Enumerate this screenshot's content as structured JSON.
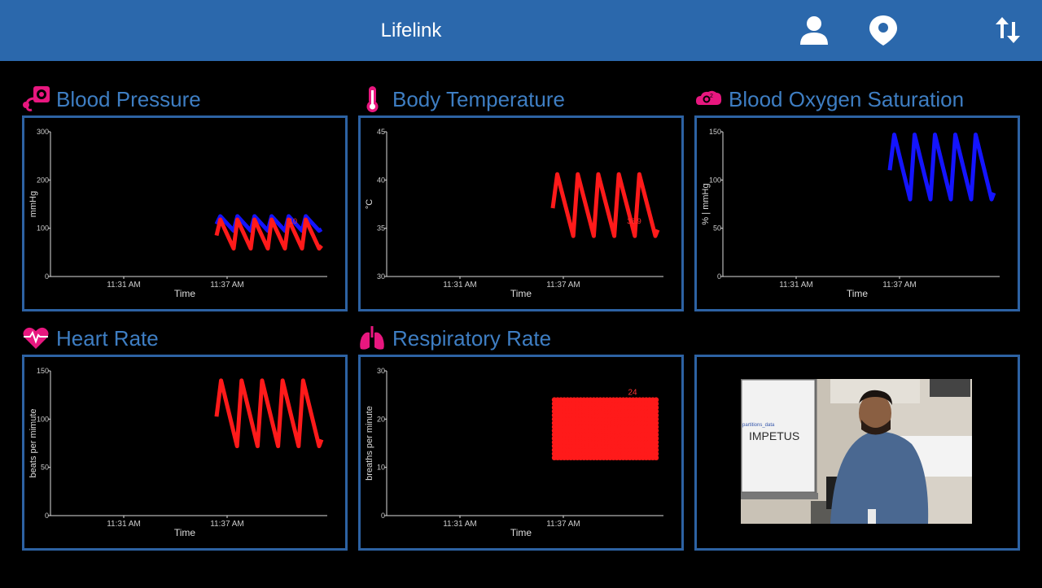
{
  "app": {
    "title": "Lifelink"
  },
  "header_icons": [
    "user-icon",
    "location-pin-icon",
    "sort-arrows-icon"
  ],
  "colors": {
    "header": "#2b68ac",
    "panel_border": "#2d62a3",
    "title_text": "#3e7ec3",
    "icon_pink": "#e8177f",
    "series_red": "#ff1a1a",
    "series_blue": "#1414ff"
  },
  "panels": [
    {
      "id": "bp",
      "title": "Blood Pressure",
      "icon": "blood-pressure-icon",
      "chart_data": {
        "type": "line",
        "ylabel": "mmHg",
        "xlabel": "Time",
        "yticks": [
          "0",
          "100",
          "200",
          "300"
        ],
        "ylim": [
          0,
          300
        ],
        "xticks": [
          "11:31 AM",
          "11:37 AM"
        ],
        "series": [
          {
            "color": "#1414ff",
            "waves": 6,
            "low": 95,
            "high": 125
          },
          {
            "color": "#ff1a1a",
            "waves": 6,
            "low": 58,
            "high": 118
          }
        ],
        "annotation": "10"
      }
    },
    {
      "id": "temp",
      "title": "Body Temperature",
      "icon": "thermometer-icon",
      "chart_data": {
        "type": "line",
        "ylabel": "°C",
        "xlabel": "Time",
        "yticks": [
          "30",
          "35",
          "40",
          "45"
        ],
        "ylim": [
          30,
          45
        ],
        "xticks": [
          "11:31 AM",
          "11:37 AM"
        ],
        "series": [
          {
            "color": "#ff1a1a",
            "waves": 5,
            "low": 34.2,
            "high": 40.6
          }
        ],
        "annotation": "36.9"
      }
    },
    {
      "id": "spo2",
      "title": "Blood Oxygen Saturation",
      "icon": "oxygen-cloud-icon",
      "chart_data": {
        "type": "line",
        "ylabel": "% | mmHg",
        "xlabel": "Time",
        "yticks": [
          "0",
          "50",
          "100",
          "150"
        ],
        "ylim": [
          0,
          150
        ],
        "xticks": [
          "11:31 AM",
          "11:37 AM"
        ],
        "series": [
          {
            "color": "#1414ff",
            "waves": 5,
            "low": 80,
            "high": 147
          }
        ],
        "annotation": ""
      }
    },
    {
      "id": "hr",
      "title": "Heart Rate",
      "icon": "heart-pulse-icon",
      "chart_data": {
        "type": "line",
        "ylabel": "beats per mimute",
        "xlabel": "Time",
        "yticks": [
          "0",
          "50",
          "100",
          "150"
        ],
        "ylim": [
          0,
          150
        ],
        "xticks": [
          "11:31 AM",
          "11:37 AM"
        ],
        "series": [
          {
            "color": "#ff1a1a",
            "waves": 5,
            "low": 72,
            "high": 140
          }
        ],
        "annotation": ""
      }
    },
    {
      "id": "rr",
      "title": "Respiratory Rate",
      "icon": "lungs-icon",
      "chart_data": {
        "type": "scatter",
        "ylabel": "breaths per minute",
        "xlabel": "Time",
        "yticks": [
          "0",
          "10",
          "20",
          "30"
        ],
        "ylim": [
          0,
          30
        ],
        "xticks": [
          "11:31 AM",
          "11:37 AM"
        ],
        "series": [
          {
            "color": "#ff1a1a",
            "low": 12,
            "high": 24
          }
        ],
        "annotation": "24"
      }
    }
  ],
  "video": {
    "slide_text": "IMPETUS",
    "slide_small": "partitions_data"
  }
}
